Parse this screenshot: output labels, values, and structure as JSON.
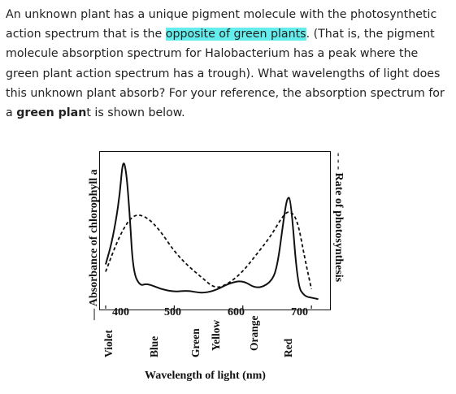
{
  "question": {
    "seg1": "An unknown plant has a unique pigment molecule with the photosynthetic action spectrum that is the ",
    "highlight": "opposite of green plants",
    "seg2": ". (That is, the pigment molecule absorption spectrum for Halobacterium has a peak where the green plant action spectrum has a trough). What wavelengths of light does this unknown plant absorb? For your reference, the absorption spectrum for a ",
    "bold": "green plan",
    "seg3": "t is shown below.",
    "highlight_color": "#63eded"
  },
  "figure": {
    "ylabel_left": "— Absorbance of chlorophyll a",
    "ylabel_right": "- - - Rate of photosynthesis",
    "xlabel": "Wavelength of light (nm)",
    "xticks": [
      "400",
      "500",
      "600",
      "700"
    ],
    "colors": [
      "Violet",
      "Blue",
      "Green",
      "Yellow",
      "Orange",
      "Red"
    ]
  },
  "chart_data": {
    "type": "line",
    "xlabel": "Wavelength of light (nm)",
    "ylabel": "Absorbance of chlorophyll a",
    "y2label": "Rate of photosynthesis",
    "xlim": [
      400,
      720
    ],
    "grid": false,
    "series": [
      {
        "name": "Absorbance of chlorophyll a",
        "style": "solid",
        "x": [
          400,
          410,
          420,
          425,
          430,
          435,
          440,
          450,
          460,
          480,
          500,
          520,
          540,
          560,
          580,
          600,
          620,
          640,
          650,
          660,
          665,
          670,
          680,
          690,
          700,
          710
        ],
        "values": [
          0.25,
          0.42,
          0.7,
          0.98,
          0.9,
          0.6,
          0.2,
          0.1,
          0.12,
          0.08,
          0.06,
          0.07,
          0.05,
          0.07,
          0.12,
          0.14,
          0.08,
          0.12,
          0.22,
          0.58,
          0.72,
          0.7,
          0.1,
          0.03,
          0.02,
          0.01
        ]
      },
      {
        "name": "Rate of photosynthesis",
        "style": "dashed",
        "x": [
          400,
          420,
          440,
          460,
          480,
          500,
          520,
          540,
          560,
          580,
          600,
          620,
          640,
          660,
          670,
          680,
          690,
          700
        ],
        "values": [
          0.2,
          0.45,
          0.6,
          0.58,
          0.48,
          0.34,
          0.24,
          0.16,
          0.08,
          0.12,
          0.2,
          0.32,
          0.44,
          0.6,
          0.62,
          0.55,
          0.3,
          0.08
        ]
      }
    ]
  }
}
